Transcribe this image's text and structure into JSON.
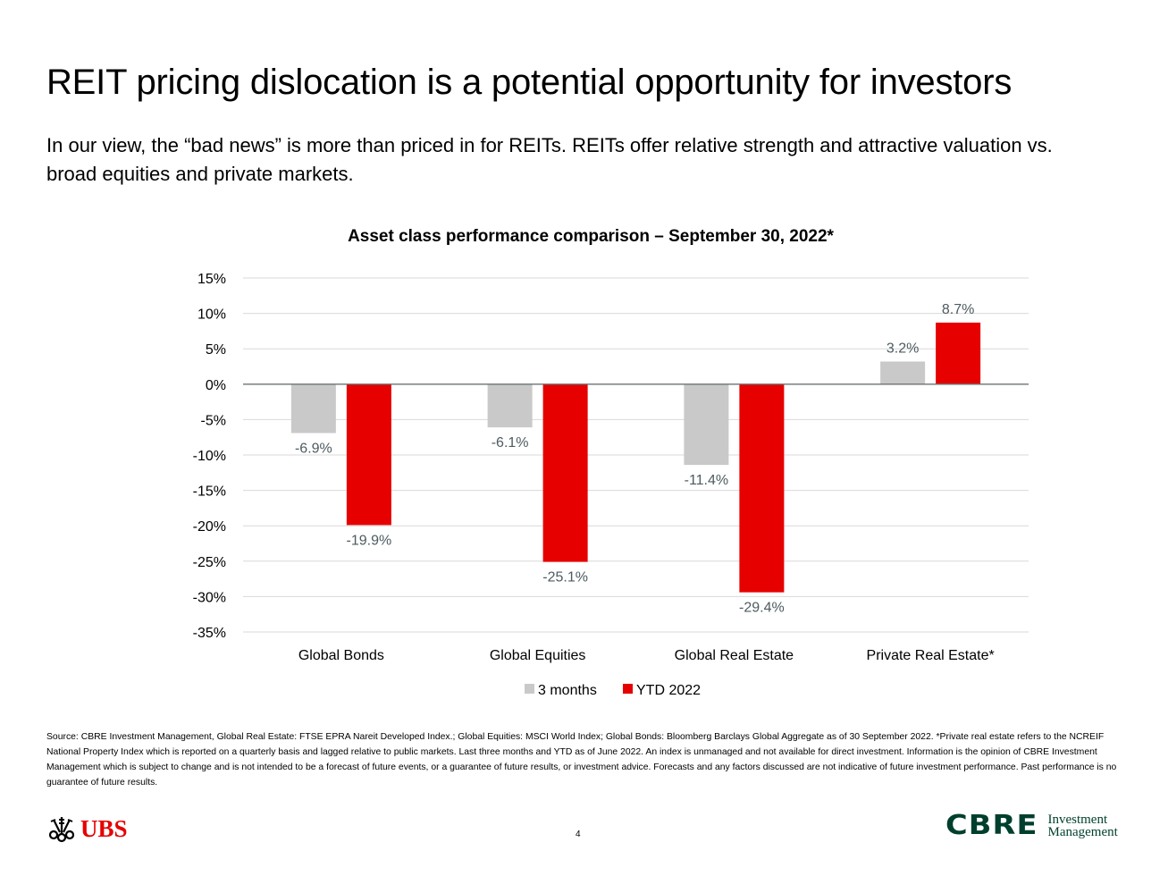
{
  "slide": {
    "title": "REIT pricing dislocation is a potential opportunity for investors",
    "subtitle": "In our view, the “bad news” is more than priced in for REITs.  REITs offer relative strength and attractive valuation vs. broad equities and private markets.",
    "source": "Source: CBRE Investment Management, Global Real Estate:  FTSE EPRA Nareit Developed Index.; Global Equities:  MSCI World Index; Global Bonds:  Bloomberg Barclays Global Aggregate as of 30 September 2022. *Private real estate refers to the NCREIF National Property Index which is reported on a quarterly basis and lagged relative to public markets.  Last three months and YTD as of June 2022.  An index is unmanaged and not available for direct investment. Information is the opinion of CBRE Investment Management which is subject to change and is not intended to be a forecast of future events, or a guarantee of future results, or investment advice. Forecasts and any factors discussed are not indicative of future investment performance.  Past performance is no guarantee of future results.",
    "page_number": "4"
  },
  "logos": {
    "ubs": {
      "text": "UBS",
      "icon": "ubs-keys-icon",
      "color": "#e60000"
    },
    "cbre": {
      "word": "CBRE",
      "line1": "Investment",
      "line2": "Management",
      "color": "#003f2d"
    }
  },
  "chart_data": {
    "type": "bar",
    "title": "Asset class performance comparison – September 30, 2022*",
    "xlabel": "",
    "ylabel": "",
    "categories": [
      "Global Bonds",
      "Global Equities",
      "Global Real Estate",
      "Private Real Estate*"
    ],
    "series": [
      {
        "name": "3 months",
        "color": "#c9c9c9",
        "values": [
          -6.9,
          -6.1,
          -11.4,
          3.2
        ],
        "labels": [
          "-6.9%",
          "-6.1%",
          "-11.4%",
          "3.2%"
        ]
      },
      {
        "name": "YTD 2022",
        "color": "#e60000",
        "values": [
          -19.9,
          -25.1,
          -29.4,
          8.7
        ],
        "labels": [
          "-19.9%",
          "-25.1%",
          "-29.4%",
          "8.7%"
        ]
      }
    ],
    "ylim": [
      -35,
      15
    ],
    "yticks": [
      15,
      10,
      5,
      0,
      -5,
      -10,
      -15,
      -20,
      -25,
      -30,
      -35
    ],
    "ytick_labels": [
      "15%",
      "10%",
      "5%",
      "0%",
      "-5%",
      "-10%",
      "-15%",
      "-20%",
      "-25%",
      "-30%",
      "-35%"
    ],
    "grid": true,
    "legend": "bottom-center",
    "label_color": "#4d5b5f"
  }
}
